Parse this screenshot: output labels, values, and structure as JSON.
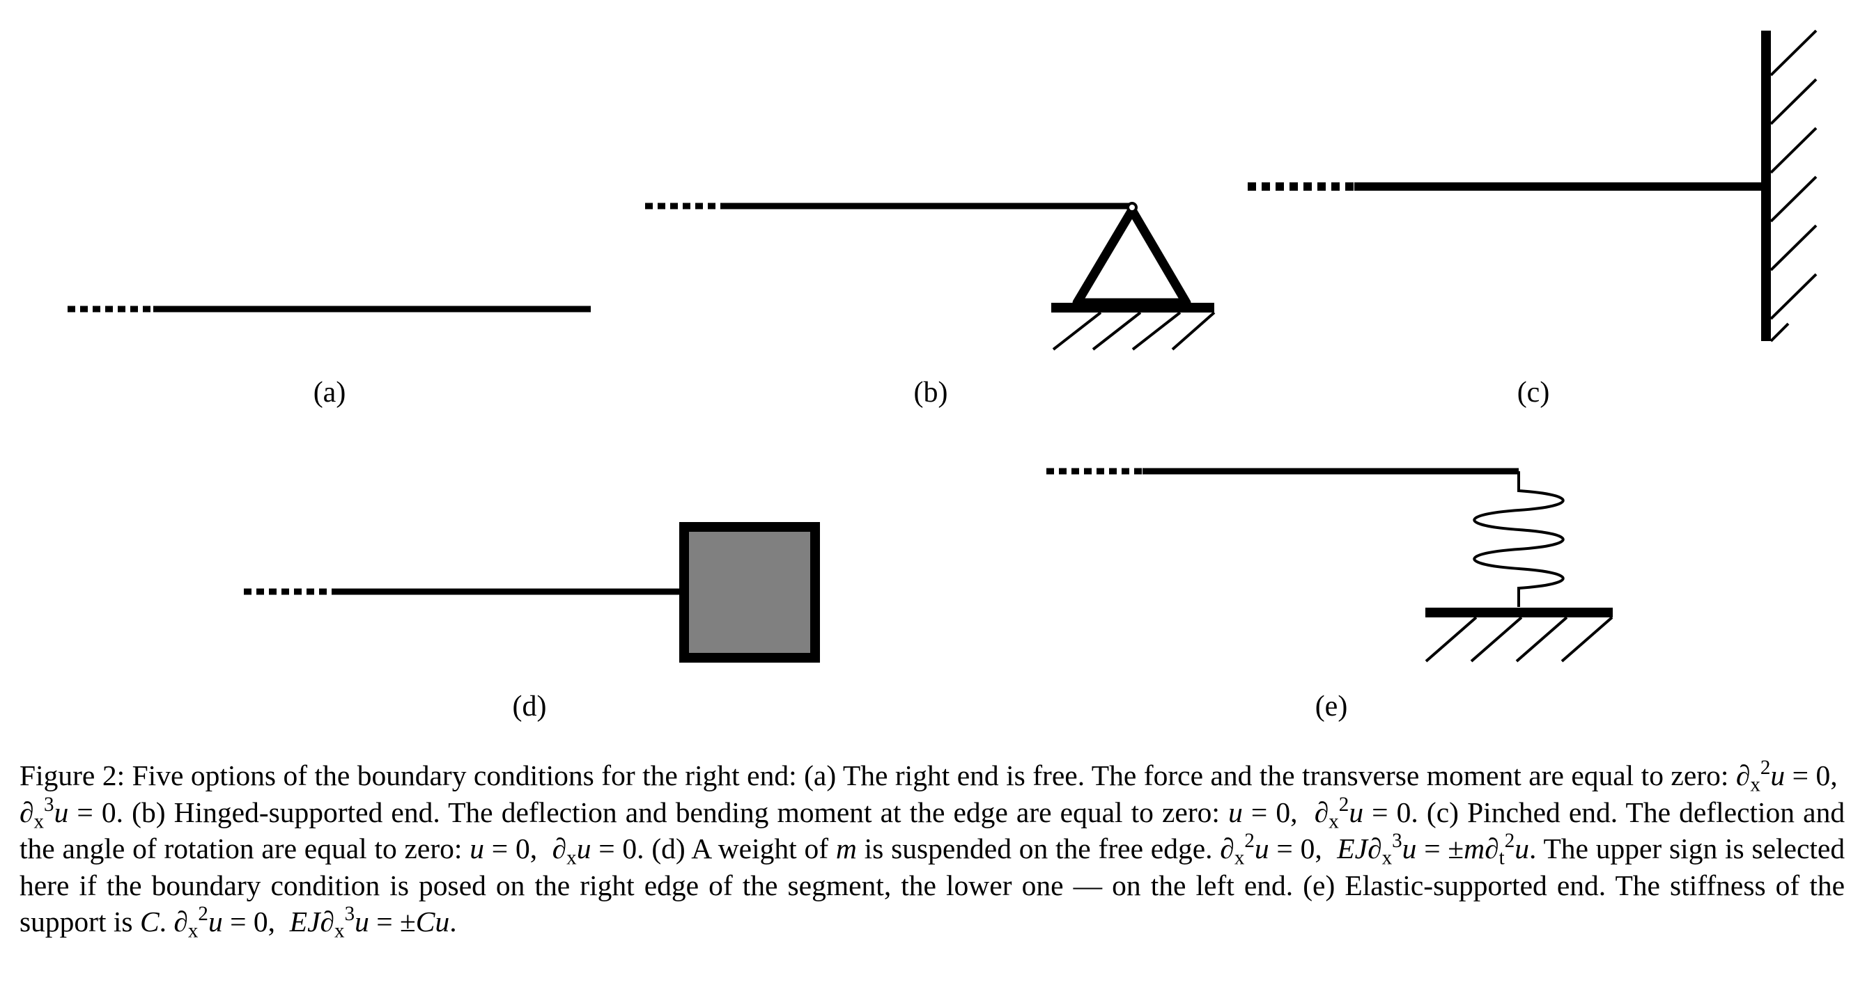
{
  "panels": [
    {
      "id": "a",
      "label": "(a)"
    },
    {
      "id": "b",
      "label": "(b)"
    },
    {
      "id": "c",
      "label": "(c)"
    },
    {
      "id": "d",
      "label": "(d)"
    },
    {
      "id": "e",
      "label": "(e)"
    }
  ],
  "caption": {
    "prefix": "Figure 2:",
    "intro": "Five options of the boundary conditions for the right end:",
    "a_label": "(a)",
    "a_text": "The right end is free. The force and the transverse moment are equal to zero:",
    "b_label": "(b)",
    "b_text": "Hinged-supported end. The deflection and bending moment at the edge are equal to zero:",
    "c_label": "(c)",
    "c_text": "Pinched end. The deflection and the angle of rotation are equal to zero:",
    "d_label": "(d)",
    "d_text_1": "A weight of",
    "d_text_2": "is suspended on the free edge.",
    "d_text_3": "The upper sign is selected here if the boundary condition is posed on the right edge of the segment, the lower one — on the left end.",
    "e_label": "(e)",
    "e_text": "Elastic-supported end. The stiffness of the support is",
    "sym_m": "m",
    "sym_C": "C"
  },
  "colors": {
    "ink": "#000000",
    "mass_fill": "#808080"
  }
}
